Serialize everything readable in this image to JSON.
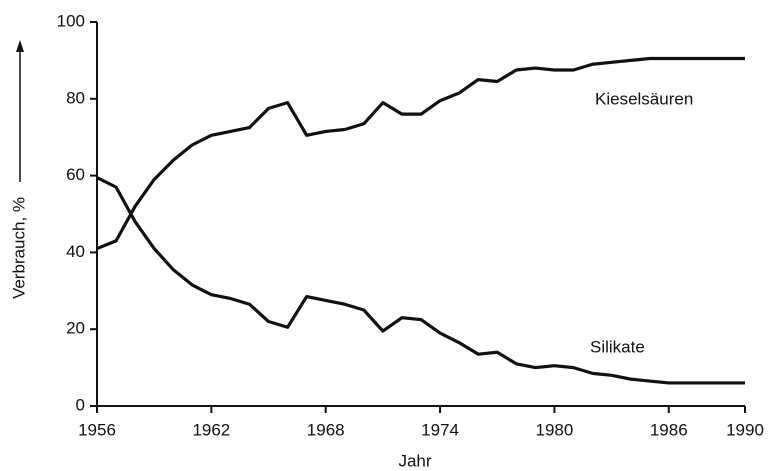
{
  "chart_data": {
    "type": "line",
    "xlabel": "Jahr",
    "ylabel": "Verbrauch, %",
    "x": [
      1956,
      1957,
      1958,
      1959,
      1960,
      1961,
      1962,
      1963,
      1964,
      1965,
      1966,
      1967,
      1968,
      1969,
      1970,
      1971,
      1972,
      1973,
      1974,
      1975,
      1976,
      1977,
      1978,
      1979,
      1980,
      1981,
      1982,
      1983,
      1984,
      1985,
      1986,
      1987,
      1988,
      1989,
      1990
    ],
    "series": [
      {
        "name": "Kieselsäuren",
        "color": "#111111",
        "values": [
          41,
          43,
          52,
          59,
          64,
          68,
          70.5,
          71.5,
          72.5,
          77.5,
          79,
          70.5,
          71.5,
          72,
          73.5,
          79,
          76,
          76,
          79.5,
          81.5,
          85,
          84.5,
          87.5,
          88,
          87.5,
          87.5,
          89,
          89.5,
          90,
          90.5,
          90.5,
          90.5,
          90.5,
          90.5,
          90.5
        ]
      },
      {
        "name": "Silikate",
        "color": "#111111",
        "values": [
          59.5,
          57,
          48,
          41,
          35.5,
          31.5,
          29,
          28,
          26.5,
          22,
          20.5,
          28.5,
          27.5,
          26.5,
          25,
          19.5,
          23,
          22.5,
          19,
          16.5,
          13.5,
          14,
          11,
          10,
          10.5,
          10,
          8.5,
          8,
          7,
          6.5,
          6,
          6,
          6,
          6,
          6
        ]
      }
    ],
    "xlim": [
      1956,
      1990
    ],
    "xticks": [
      1956,
      1962,
      1968,
      1974,
      1980,
      1986,
      1990
    ],
    "ylim": [
      0,
      100
    ],
    "yticks": [
      0,
      20,
      40,
      60,
      80,
      100
    ],
    "grid": false
  }
}
